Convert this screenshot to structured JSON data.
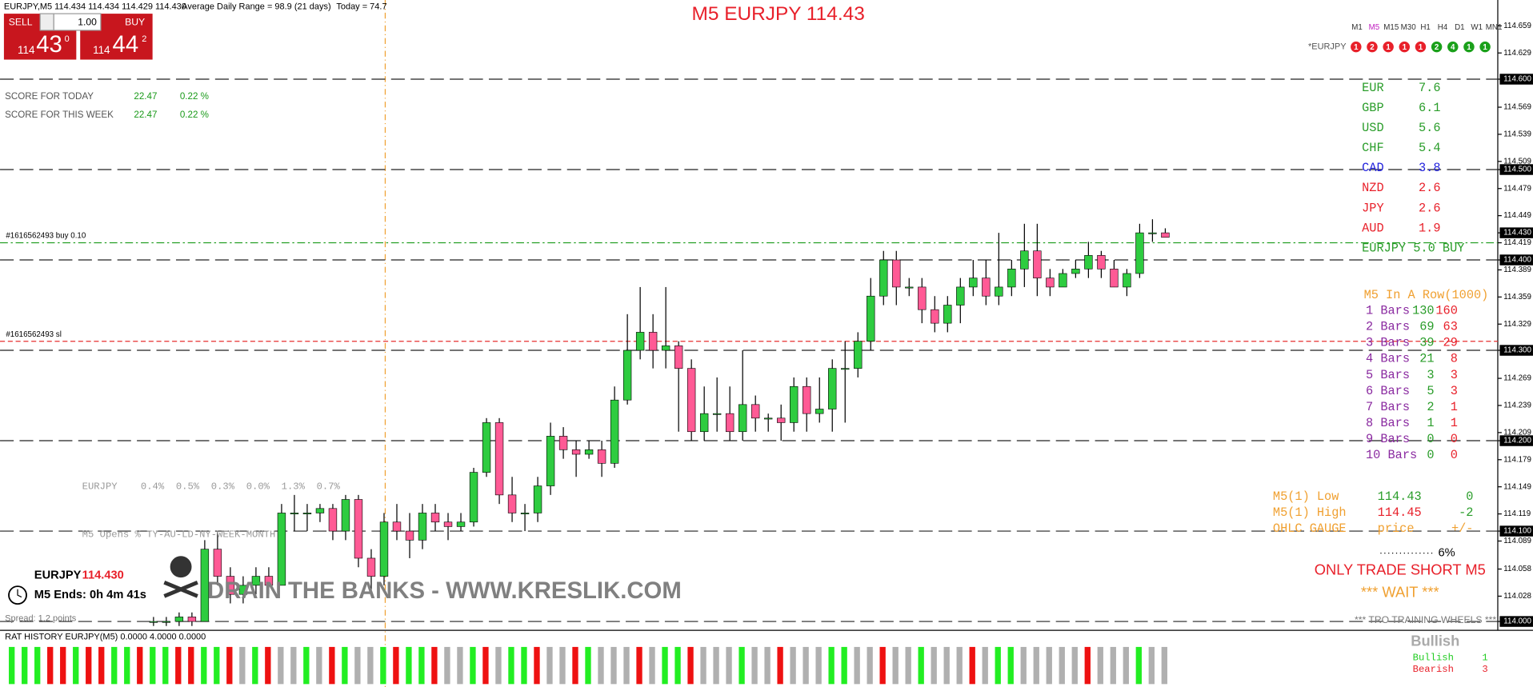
{
  "header": {
    "symbol_info": "EURJPY,M5  114.434 114.434 114.429 114.430",
    "adr": "Average Daily Range = 98.9 (21 days)",
    "today": "Today = 74.7",
    "title": "M5 EURJPY 114.43"
  },
  "trade_panel": {
    "sell": "SELL",
    "lots": "1.00",
    "buy": "BUY",
    "sell_price": [
      "114",
      "43",
      "0"
    ],
    "buy_price": [
      "114",
      "44",
      "2"
    ]
  },
  "score": [
    [
      "SCORE FOR TODAY",
      "22.47",
      "0.22 %"
    ],
    [
      "SCORE FOR THIS WEEK",
      "22.47",
      "0.22 %"
    ]
  ],
  "timeframes": {
    "labels": [
      "M1",
      "M5",
      "M15",
      "M30",
      "H1",
      "H4",
      "D1",
      "W1",
      "MN1"
    ],
    "symbol": "*EURJPY",
    "signals": [
      {
        "label": "1",
        "color": "#e8202a"
      },
      {
        "label": "2",
        "color": "#e8202a"
      },
      {
        "label": "1",
        "color": "#e8202a"
      },
      {
        "label": "1",
        "color": "#e8202a"
      },
      {
        "label": "1",
        "color": "#e8202a"
      },
      {
        "label": "2",
        "color": "#1aa01a"
      },
      {
        "label": "4",
        "color": "#1aa01a"
      },
      {
        "label": "1",
        "color": "#1aa01a"
      },
      {
        "label": "1",
        "color": "#1aa01a"
      }
    ]
  },
  "strength": [
    {
      "name": "EUR",
      "value": "7.6",
      "color": "#2a9d2a"
    },
    {
      "name": "GBP",
      "value": "6.1",
      "color": "#2a9d2a"
    },
    {
      "name": "USD",
      "value": "5.6",
      "color": "#2a9d2a"
    },
    {
      "name": "CHF",
      "value": "5.4",
      "color": "#2a9d2a"
    },
    {
      "name": "CAD",
      "value": "3.8",
      "color": "#2222dd"
    },
    {
      "name": "NZD",
      "value": "2.6",
      "color": "#e8202a"
    },
    {
      "name": "JPY",
      "value": "2.6",
      "color": "#e8202a"
    },
    {
      "name": "AUD",
      "value": "1.9",
      "color": "#e8202a"
    }
  ],
  "strength_signal": "EURJPY 5.0 BUY",
  "in_a_row": {
    "title": "M5 In A Row(1000)",
    "rows": [
      [
        "1 Bars",
        "130",
        "160"
      ],
      [
        "2 Bars",
        "69",
        "63"
      ],
      [
        "3 Bars",
        "39",
        "29"
      ],
      [
        "4 Bars",
        "21",
        "8"
      ],
      [
        "5 Bars",
        "3",
        "3"
      ],
      [
        "6 Bars",
        "5",
        "3"
      ],
      [
        "7 Bars",
        "2",
        "1"
      ],
      [
        "8 Bars",
        "1",
        "1"
      ],
      [
        "9 Bars",
        "0",
        "0"
      ],
      [
        "10 Bars",
        "0",
        "0"
      ]
    ]
  },
  "gauge": {
    "rows": [
      [
        "M5(1) Low",
        "114.43",
        "0"
      ],
      [
        "M5(1) High",
        "114.45",
        "-2"
      ],
      [
        "OHLC GAUGE",
        "price",
        "+/-"
      ]
    ],
    "percent": "6%",
    "advice": "ONLY TRADE SHORT M5",
    "wait": "*** WAIT ***",
    "footer": "*** TRO TRAINING WHEELS ***"
  },
  "opens": {
    "line1": "EURJPY    0.4%  0.5%  0.3%  0.0%  1.3%  0.7%",
    "line2": "M5 Opens % TY-AU-LD-NY-WEEK-MONTH"
  },
  "info": {
    "symbol": "EURJPY",
    "price": "114.430",
    "ends": "M5 Ends: 0h 4m 41s",
    "spread": "Spread: 1.2 points",
    "banner": "DRAIN THE BANKS - WWW.KRESLIK.COM"
  },
  "orders": [
    {
      "label": "#1616562493 buy 0.10",
      "price": 114.419,
      "color": "#1a9a1a"
    },
    {
      "label": "#1616562493 sl",
      "price": 114.31,
      "color": "#e83030"
    }
  ],
  "levels": [
    114.6,
    114.5,
    114.4,
    114.3,
    114.2,
    114.1,
    114
  ],
  "ylim": [
    113.9967,
    114.6876
  ],
  "yticks": [
    114.659,
    114.629,
    {
      "value": 114.6,
      "label": "114.600"
    },
    114.569,
    114.539,
    114.509,
    {
      "value": 114.5,
      "label": "114.500"
    },
    114.479,
    114.449,
    {
      "value": 114.43,
      "label": "114.430"
    },
    114.419,
    {
      "value": 114.4,
      "label": "114.400"
    },
    114.389,
    114.359,
    114.329,
    {
      "value": 114.3,
      "label": "114.300"
    },
    114.269,
    114.239,
    114.209,
    {
      "value": 114.2,
      "label": "114.200"
    },
    114.179,
    114.149,
    114.119,
    {
      "value": 114.1,
      "label": "114.100"
    },
    114.089,
    114.058,
    114.028,
    {
      "value": 114,
      "label": "114.000"
    }
  ],
  "candles": [
    [
      114.0,
      114.005,
      113.995,
      114.0
    ],
    [
      114.0,
      114.005,
      113.995,
      114.0
    ],
    [
      114.0,
      114.01,
      113.995,
      114.005
    ],
    [
      114.005,
      114.01,
      113.995,
      114.0
    ],
    [
      114.0,
      114.09,
      114.0,
      114.08
    ],
    [
      114.08,
      114.1,
      114.04,
      114.05
    ],
    [
      114.05,
      114.06,
      114.02,
      114.03
    ],
    [
      114.03,
      114.05,
      114.02,
      114.04
    ],
    [
      114.04,
      114.06,
      114.03,
      114.05
    ],
    [
      114.05,
      114.06,
      114.03,
      114.04
    ],
    [
      114.04,
      114.13,
      114.04,
      114.12
    ],
    [
      114.12,
      114.14,
      114.1,
      114.12
    ],
    [
      114.12,
      114.13,
      114.1,
      114.12
    ],
    [
      114.12,
      114.13,
      114.11,
      114.125
    ],
    [
      114.125,
      114.13,
      114.09,
      114.1
    ],
    [
      114.1,
      114.14,
      114.09,
      114.135
    ],
    [
      114.135,
      114.14,
      114.06,
      114.07
    ],
    [
      114.07,
      114.08,
      114.03,
      114.05
    ],
    [
      114.05,
      114.12,
      114.04,
      114.11
    ],
    [
      114.11,
      114.13,
      114.09,
      114.1
    ],
    [
      114.1,
      114.12,
      114.07,
      114.09
    ],
    [
      114.09,
      114.13,
      114.08,
      114.12
    ],
    [
      114.12,
      114.13,
      114.1,
      114.11
    ],
    [
      114.11,
      114.12,
      114.09,
      114.105
    ],
    [
      114.105,
      114.12,
      114.1,
      114.11
    ],
    [
      114.11,
      114.17,
      114.105,
      114.165
    ],
    [
      114.165,
      114.225,
      114.16,
      114.22
    ],
    [
      114.22,
      114.225,
      114.13,
      114.14
    ],
    [
      114.14,
      114.16,
      114.11,
      114.12
    ],
    [
      114.12,
      114.13,
      114.1,
      114.12
    ],
    [
      114.12,
      114.16,
      114.11,
      114.15
    ],
    [
      114.15,
      114.22,
      114.14,
      114.205
    ],
    [
      114.205,
      114.215,
      114.18,
      114.19
    ],
    [
      114.19,
      114.2,
      114.16,
      114.185
    ],
    [
      114.185,
      114.2,
      114.18,
      114.19
    ],
    [
      114.19,
      114.2,
      114.16,
      114.175
    ],
    [
      114.175,
      114.26,
      114.17,
      114.245
    ],
    [
      114.245,
      114.34,
      114.24,
      114.3
    ],
    [
      114.3,
      114.37,
      114.29,
      114.32
    ],
    [
      114.32,
      114.34,
      114.28,
      114.3
    ],
    [
      114.3,
      114.37,
      114.28,
      114.305
    ],
    [
      114.305,
      114.31,
      114.21,
      114.28
    ],
    [
      114.28,
      114.29,
      114.2,
      114.21
    ],
    [
      114.21,
      114.26,
      114.2,
      114.23
    ],
    [
      114.23,
      114.27,
      114.21,
      114.23
    ],
    [
      114.23,
      114.26,
      114.2,
      114.21
    ],
    [
      114.21,
      114.3,
      114.2,
      114.24
    ],
    [
      114.24,
      114.25,
      114.21,
      114.225
    ],
    [
      114.225,
      114.23,
      114.21,
      114.225
    ],
    [
      114.225,
      114.24,
      114.2,
      114.22
    ],
    [
      114.22,
      114.27,
      114.21,
      114.26
    ],
    [
      114.26,
      114.27,
      114.21,
      114.23
    ],
    [
      114.23,
      114.27,
      114.22,
      114.235
    ],
    [
      114.235,
      114.29,
      114.21,
      114.28
    ],
    [
      114.28,
      114.31,
      114.22,
      114.28
    ],
    [
      114.28,
      114.32,
      114.27,
      114.31
    ],
    [
      114.31,
      114.38,
      114.3,
      114.36
    ],
    [
      114.36,
      114.41,
      114.35,
      114.4
    ],
    [
      114.4,
      114.41,
      114.35,
      114.37
    ],
    [
      114.37,
      114.38,
      114.36,
      114.37
    ],
    [
      114.37,
      114.38,
      114.33,
      114.345
    ],
    [
      114.345,
      114.36,
      114.32,
      114.33
    ],
    [
      114.33,
      114.36,
      114.32,
      114.35
    ],
    [
      114.35,
      114.38,
      114.33,
      114.37
    ],
    [
      114.37,
      114.4,
      114.36,
      114.38
    ],
    [
      114.38,
      114.4,
      114.35,
      114.36
    ],
    [
      114.36,
      114.43,
      114.35,
      114.37
    ],
    [
      114.37,
      114.4,
      114.36,
      114.39
    ],
    [
      114.39,
      114.44,
      114.37,
      114.41
    ],
    [
      114.41,
      114.44,
      114.36,
      114.38
    ],
    [
      114.38,
      114.39,
      114.36,
      114.37
    ],
    [
      114.37,
      114.39,
      114.37,
      114.385
    ],
    [
      114.385,
      114.4,
      114.38,
      114.39
    ],
    [
      114.39,
      114.42,
      114.38,
      114.405
    ],
    [
      114.405,
      114.41,
      114.38,
      114.39
    ],
    [
      114.39,
      114.4,
      114.37,
      114.37
    ],
    [
      114.37,
      114.39,
      114.36,
      114.385
    ],
    [
      114.385,
      114.44,
      114.38,
      114.43
    ],
    [
      114.43,
      114.445,
      114.42,
      114.43
    ],
    [
      114.43,
      114.435,
      114.425,
      114.425
    ]
  ],
  "rat": {
    "title": "RAT HISTORY EURJPY(M5) 0.0000 4.0000 0.0000",
    "state": "Bullish",
    "rows": [
      [
        "Bullish",
        "1"
      ],
      [
        "Bearish",
        "3"
      ]
    ],
    "history": [
      1,
      1,
      1,
      -1,
      -1,
      1,
      -1,
      -1,
      1,
      1,
      -1,
      1,
      1,
      -1,
      -1,
      1,
      1,
      -1,
      0,
      1,
      -1,
      0,
      0,
      1,
      0,
      -1,
      1,
      0,
      0,
      1,
      -1,
      1,
      1,
      -1,
      0,
      0,
      1,
      -1,
      0,
      1,
      1,
      -1,
      0,
      0,
      -1,
      1,
      0,
      0,
      0,
      -1,
      0,
      1,
      1,
      -1,
      0,
      0,
      0,
      1,
      0,
      0,
      -1,
      0,
      0,
      0,
      1,
      1,
      0,
      0,
      -1,
      0,
      0,
      1,
      0,
      0,
      0,
      -1,
      0,
      1,
      1,
      0,
      0,
      0,
      0,
      0,
      -1,
      0,
      0,
      0,
      1,
      0,
      0
    ]
  }
}
